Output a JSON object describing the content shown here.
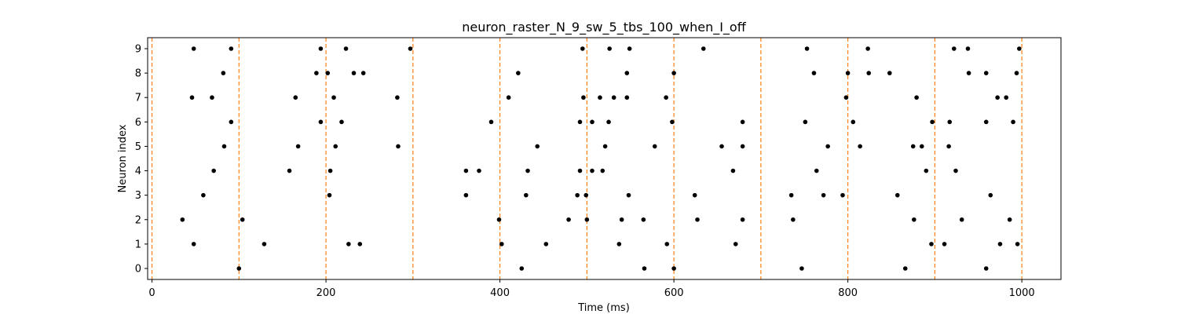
{
  "chart_data": {
    "type": "scatter",
    "title": "neuron_raster_N_9_sw_5_tbs_100_when_I_off",
    "xlabel": "Time (ms)",
    "ylabel": "Neuron index",
    "xlim": [
      -5,
      1045
    ],
    "ylim": [
      -0.45,
      9.45
    ],
    "xticks": [
      0,
      200,
      400,
      600,
      800,
      1000
    ],
    "yticks": [
      0,
      1,
      2,
      3,
      4,
      5,
      6,
      7,
      8,
      9
    ],
    "grid": false,
    "marker_color": "#000000",
    "vertical_lines": {
      "x": [
        0,
        100,
        200,
        300,
        400,
        500,
        600,
        700,
        800,
        900,
        1000
      ],
      "color": "#ff7f0e",
      "style": "dashed"
    },
    "spikes": [
      {
        "neuron": 0,
        "times": [
          100,
          425,
          566,
          600,
          747,
          866,
          959
        ]
      },
      {
        "neuron": 1,
        "times": [
          48,
          129,
          226,
          239,
          402,
          453,
          537,
          592,
          671,
          896,
          911,
          975,
          995
        ]
      },
      {
        "neuron": 2,
        "times": [
          35,
          104,
          399,
          479,
          500,
          540,
          565,
          627,
          679,
          737,
          876,
          931,
          986
        ]
      },
      {
        "neuron": 3,
        "times": [
          59,
          204,
          361,
          430,
          489,
          499,
          548,
          624,
          735,
          772,
          794,
          857,
          964
        ]
      },
      {
        "neuron": 4,
        "times": [
          71,
          158,
          205,
          361,
          376,
          432,
          492,
          506,
          518,
          668,
          764,
          890,
          924
        ]
      },
      {
        "neuron": 5,
        "times": [
          83,
          168,
          211,
          283,
          443,
          521,
          578,
          655,
          679,
          777,
          814,
          875,
          885,
          916
        ]
      },
      {
        "neuron": 6,
        "times": [
          91,
          194,
          218,
          390,
          492,
          506,
          525,
          598,
          679,
          751,
          806,
          897,
          917,
          959,
          990
        ]
      },
      {
        "neuron": 7,
        "times": [
          46,
          69,
          165,
          209,
          282,
          410,
          496,
          515,
          531,
          546,
          591,
          798,
          879,
          972,
          982
        ]
      },
      {
        "neuron": 8,
        "times": [
          82,
          189,
          202,
          232,
          243,
          421,
          546,
          600,
          761,
          800,
          824,
          848,
          939,
          959,
          994
        ]
      },
      {
        "neuron": 9,
        "times": [
          48,
          91,
          194,
          223,
          297,
          495,
          526,
          549,
          634,
          753,
          823,
          922,
          938,
          997
        ]
      }
    ]
  }
}
